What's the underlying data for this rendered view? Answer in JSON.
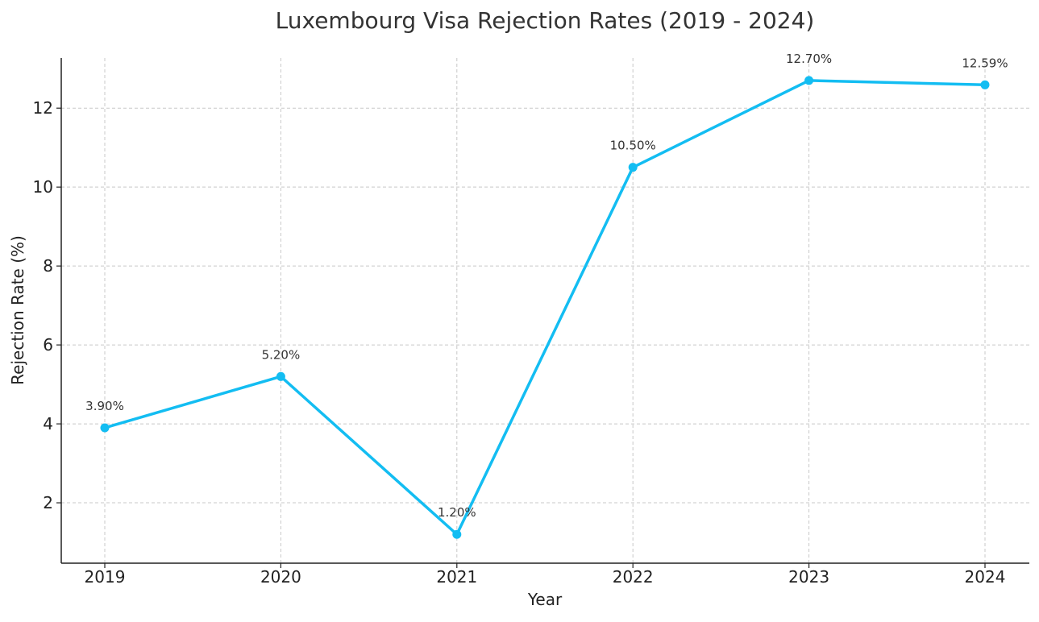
{
  "chart_data": {
    "type": "line",
    "title": "Luxembourg Visa Rejection Rates (2019 - 2024)",
    "xlabel": "Year",
    "ylabel": "Rejection Rate (%)",
    "categories": [
      "2019",
      "2020",
      "2021",
      "2022",
      "2023",
      "2024"
    ],
    "series": [
      {
        "values": [
          3.9,
          5.2,
          1.2,
          10.5,
          12.7,
          12.59
        ],
        "labels": [
          "3.90%",
          "5.20%",
          "1.20%",
          "10.50%",
          "12.70%",
          "12.59%"
        ]
      }
    ],
    "y_ticks": [
      "2",
      "4",
      "6",
      "8",
      "10",
      "12"
    ],
    "ylim": [
      0.47,
      13.27
    ],
    "grid": true,
    "line_color": "#13bdf2",
    "marker_color": "#13bdf2",
    "text_color": "#222222"
  }
}
